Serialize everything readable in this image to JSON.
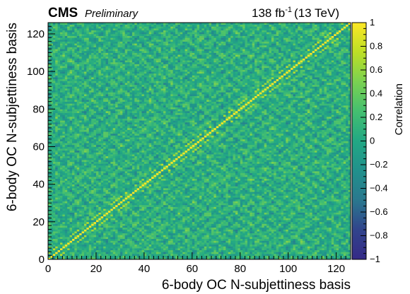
{
  "header": {
    "experiment": "CMS",
    "status": "Preliminary",
    "lumi_value": "138 fb",
    "lumi_exponent": "-1",
    "energy": "(13 TeV)"
  },
  "chart_data": {
    "type": "heatmap",
    "title": "",
    "xlabel": "6-body OC N-subjettiness basis",
    "ylabel": "6-body OC N-subjettiness basis",
    "xlim": [
      0,
      126
    ],
    "ylim": [
      0,
      126
    ],
    "n_bins": 126,
    "x_ticks": [
      "0",
      "20",
      "40",
      "60",
      "80",
      "100",
      "120"
    ],
    "y_ticks": [
      "0",
      "20",
      "40",
      "60",
      "80",
      "100",
      "120"
    ],
    "x_tick_values": [
      0,
      20,
      40,
      60,
      80,
      100,
      120
    ],
    "y_tick_values": [
      0,
      20,
      40,
      60,
      80,
      100,
      120
    ],
    "colorbar": {
      "label": "Correlation",
      "range": [
        -1,
        1
      ],
      "ticks": [
        "1",
        "0.8",
        "0.6",
        "0.4",
        "0.2",
        "0",
        "−0.2",
        "−0.4",
        "−0.6",
        "−0.8",
        "−1"
      ],
      "tick_values": [
        1,
        0.8,
        0.6,
        0.4,
        0.2,
        0,
        -0.2,
        -0.4,
        -0.6,
        -0.8,
        -1
      ],
      "colormap": "viridis"
    },
    "diagonal_value": 1,
    "off_diagonal_typical_range": [
      -0.4,
      0.6
    ],
    "grid": false,
    "colors": {
      "viridis_stops": [
        "#352a87",
        "#31448c",
        "#2a788e",
        "#21918c",
        "#22a884",
        "#44bf70",
        "#7ad151",
        "#bddf26",
        "#fde725"
      ]
    }
  }
}
